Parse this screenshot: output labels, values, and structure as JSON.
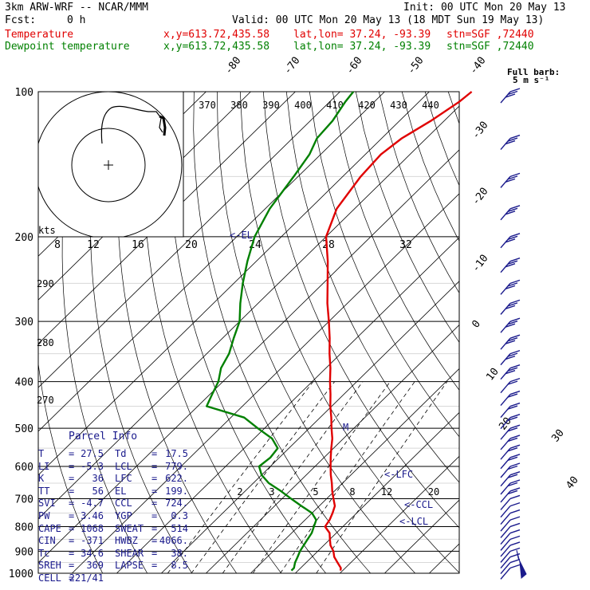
{
  "header": {
    "model": "3km ARW-WRF -- NCAR/MMM",
    "init": "Init: 00 UTC Mon 20 May 13",
    "fcst_label": "Fcst:",
    "fcst_value": "0 h",
    "valid": "Valid: 00 UTC Mon 20 May 13 (18 MDT Sun 19 May 13)",
    "temp_label": "Temperature",
    "dew_label": "Dewpoint temperature",
    "xy": "x,y=613.72,435.58",
    "latlon": "lat,lon= 37.24, -93.39",
    "stn": "stn=SGF ,72440"
  },
  "colors": {
    "temperature": "#e00000",
    "dewpoint": "#008000",
    "text_blue": "#1a1a8c"
  },
  "chart_data": {
    "type": "line",
    "y_axis": "pressure (hPa), log scale",
    "ylim": [
      1000,
      100
    ],
    "pressure_ticks": [
      100,
      200,
      300,
      400,
      500,
      600,
      700,
      800,
      900,
      1000
    ],
    "isotherm_labels": [
      "-80",
      "-70",
      "-60",
      "-50",
      "-40",
      "-30",
      "-20",
      "-10",
      "0",
      "10",
      "20",
      "30",
      "40"
    ],
    "theta_labels": [
      "370",
      "380",
      "390",
      "400",
      "410",
      "420",
      "430",
      "440"
    ],
    "theta_side_labels": [
      "290",
      "280",
      "270"
    ],
    "wind_scale_label": "kts",
    "wind_scale_ticks": [
      "8",
      "12",
      "16",
      "20",
      "24",
      "28",
      "32"
    ],
    "mixing_ratio_labels": [
      "2",
      "3",
      "5",
      "8",
      "12",
      "20"
    ],
    "markers": [
      "EL",
      "LFC",
      "CCL",
      "LCL",
      "M"
    ],
    "full_barb_label": "Full barb:",
    "full_barb_value": "5 m s⁻¹",
    "series": [
      {
        "name": "Temperature",
        "points": [
          [
            987,
            29.5
          ],
          [
            975,
            29.0
          ],
          [
            950,
            27.0
          ],
          [
            925,
            25.0
          ],
          [
            900,
            23.5
          ],
          [
            875,
            21.5
          ],
          [
            850,
            20.0
          ],
          [
            825,
            18.5
          ],
          [
            800,
            16.0
          ],
          [
            775,
            15.5
          ],
          [
            750,
            14.6
          ],
          [
            725,
            13.5
          ],
          [
            700,
            11.5
          ],
          [
            675,
            9.5
          ],
          [
            650,
            7.6
          ],
          [
            625,
            5.5
          ],
          [
            600,
            3.5
          ],
          [
            575,
            1.5
          ],
          [
            550,
            -0.5
          ],
          [
            525,
            -2.5
          ],
          [
            500,
            -5.0
          ],
          [
            475,
            -7.5
          ],
          [
            450,
            -10.3
          ],
          [
            425,
            -13.0
          ],
          [
            400,
            -16.0
          ],
          [
            375,
            -19.0
          ],
          [
            350,
            -22.5
          ],
          [
            325,
            -26.0
          ],
          [
            300,
            -30.0
          ],
          [
            275,
            -34.5
          ],
          [
            250,
            -39.0
          ],
          [
            225,
            -44.0
          ],
          [
            200,
            -50.0
          ],
          [
            175,
            -54.0
          ],
          [
            150,
            -56.0
          ],
          [
            135,
            -56.5
          ],
          [
            125,
            -55.5
          ],
          [
            115,
            -53.0
          ],
          [
            105,
            -51.0
          ],
          [
            100,
            -50.5
          ]
        ]
      },
      {
        "name": "Dewpoint temperature",
        "points": [
          [
            987,
            18.5
          ],
          [
            975,
            18.5
          ],
          [
            950,
            17.5
          ],
          [
            925,
            16.8
          ],
          [
            900,
            16.0
          ],
          [
            875,
            15.5
          ],
          [
            850,
            15.0
          ],
          [
            825,
            14.5
          ],
          [
            800,
            13.5
          ],
          [
            775,
            12.5
          ],
          [
            750,
            10.0
          ],
          [
            725,
            6.0
          ],
          [
            700,
            2.0
          ],
          [
            675,
            -2.0
          ],
          [
            650,
            -6.5
          ],
          [
            625,
            -10.0
          ],
          [
            600,
            -12.5
          ],
          [
            575,
            -12.0
          ],
          [
            550,
            -12.5
          ],
          [
            525,
            -16.0
          ],
          [
            500,
            -21.5
          ],
          [
            475,
            -27.0
          ],
          [
            450,
            -38.0
          ],
          [
            425,
            -39.5
          ],
          [
            400,
            -41.0
          ],
          [
            375,
            -43.5
          ],
          [
            350,
            -45.0
          ],
          [
            325,
            -47.5
          ],
          [
            300,
            -50.0
          ],
          [
            275,
            -54.0
          ],
          [
            250,
            -58.0
          ],
          [
            225,
            -62.0
          ],
          [
            200,
            -66.0
          ],
          [
            175,
            -69.0
          ],
          [
            150,
            -71.0
          ],
          [
            135,
            -72.5
          ],
          [
            125,
            -74.5
          ],
          [
            115,
            -75.0
          ],
          [
            105,
            -76.5
          ],
          [
            100,
            -77.0
          ]
        ]
      }
    ]
  },
  "parcel_info": {
    "title": "Parcel Info",
    "rows": [
      [
        [
          "T",
          "27.5"
        ],
        [
          "Td",
          "17.5"
        ]
      ],
      [
        [
          "LI",
          "-5.3"
        ],
        [
          "LCL",
          "779."
        ]
      ],
      [
        [
          "K",
          "36"
        ],
        [
          "LFC",
          "622."
        ]
      ],
      [
        [
          "TT",
          "56"
        ],
        [
          "EL",
          "199."
        ]
      ],
      [
        [
          "SVI",
          "-4.7"
        ],
        [
          "CCL",
          "724."
        ]
      ],
      [
        [
          "PW",
          "3.46"
        ],
        [
          "YGP",
          "0.3"
        ]
      ],
      [
        [
          "CAPE",
          "1068"
        ],
        [
          "SWEAT",
          "514"
        ]
      ],
      [
        [
          "CIN",
          "-371"
        ],
        [
          "HWBZ",
          "4066."
        ]
      ],
      [
        [
          "Tc",
          "34.6"
        ],
        [
          "SHEAR",
          "38."
        ]
      ],
      [
        [
          "SREH",
          "369"
        ],
        [
          "LAPSE",
          "8.5"
        ]
      ],
      [
        [
          "CELL",
          "221/41"
        ],
        [
          "",
          ""
        ]
      ]
    ]
  }
}
